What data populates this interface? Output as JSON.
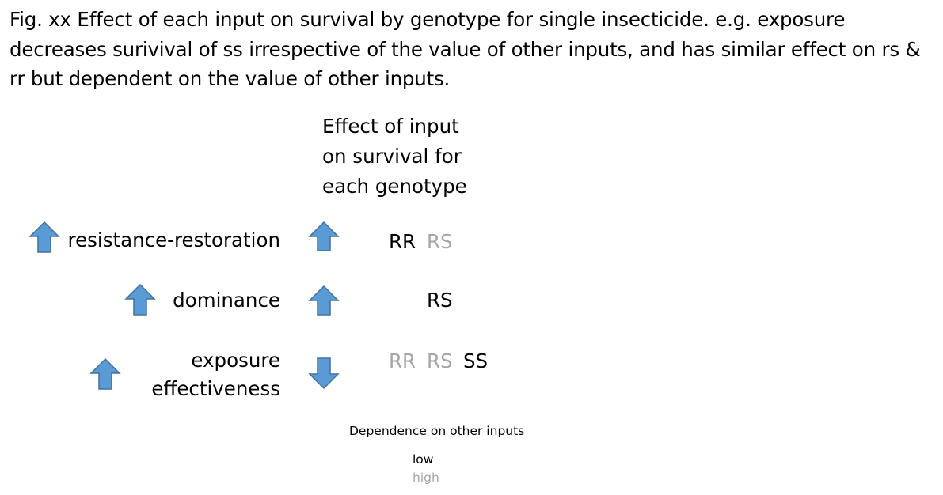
{
  "caption": "Fig. xx Effect of each input on survival by genotype for single insecticide. e.g. exposure decreases surivival of ss irrespective of the value of other inputs, and has similar effect on rs & rr but dependent on the value of other inputs.",
  "effect_heading": [
    "Effect of input",
    "on survival for",
    "each genotype"
  ],
  "rows": [
    {
      "input_label": "resistance-restoration",
      "input_arrow": "up-arrow",
      "effect_arrow": "up-arrow",
      "genotypes": [
        {
          "label": "RR",
          "dependence": "low"
        },
        {
          "label": "RS",
          "dependence": "high"
        }
      ]
    },
    {
      "input_label": "dominance",
      "input_arrow": "up-arrow",
      "effect_arrow": "up-arrow",
      "genotypes": [
        {
          "label": "RS",
          "dependence": "low"
        }
      ]
    },
    {
      "input_label_lines": [
        "exposure",
        "effectiveness"
      ],
      "input_arrow": "up-arrow",
      "effect_arrow": "down-arrow",
      "genotypes": [
        {
          "label": "RR",
          "dependence": "high"
        },
        {
          "label": "RS",
          "dependence": "high"
        },
        {
          "label": "SS",
          "dependence": "low"
        }
      ]
    }
  ],
  "legend": {
    "title": "Dependence on other inputs",
    "low": "low",
    "high": "high"
  },
  "colors": {
    "arrow_fill": "#5b9bd5",
    "arrow_stroke": "#41719c",
    "low_dependence_text": "#000000",
    "high_dependence_text": "#a6a6a6"
  }
}
